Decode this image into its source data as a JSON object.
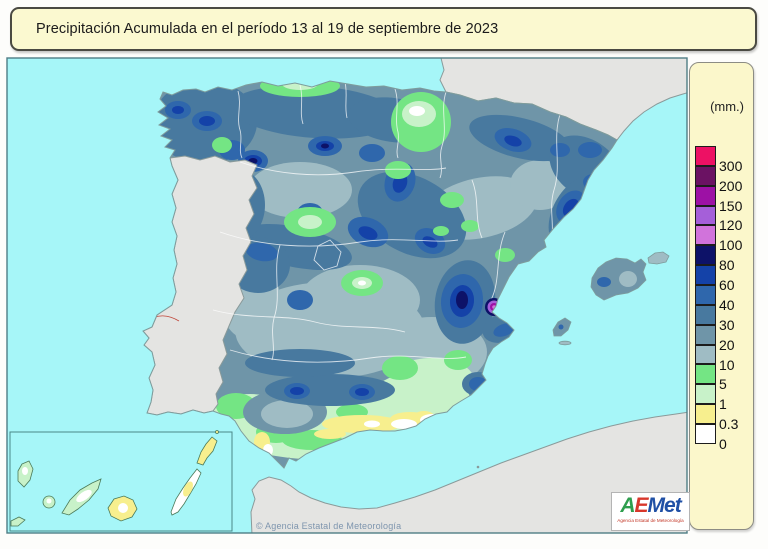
{
  "title": "Precipitación Acumulada en el período 13 al 19 de septiembre de 2023",
  "legend": {
    "unit_label": "(mm.)",
    "items": [
      {
        "label": "300",
        "color": "#ED1164"
      },
      {
        "label": "200",
        "color": "#6B1263"
      },
      {
        "label": "150",
        "color": "#9D11A5"
      },
      {
        "label": "120",
        "color": "#A55FD9"
      },
      {
        "label": "100",
        "color": "#D173DB"
      },
      {
        "label": "80",
        "color": "#0D1268"
      },
      {
        "label": "60",
        "color": "#1442A8"
      },
      {
        "label": "40",
        "color": "#2F67AC"
      },
      {
        "label": "30",
        "color": "#48799F"
      },
      {
        "label": "20",
        "color": "#6F95A8"
      },
      {
        "label": "10",
        "color": "#9FBCC4"
      },
      {
        "label": "5",
        "color": "#74E584"
      },
      {
        "label": "1",
        "color": "#C8F2C9"
      },
      {
        "label": "0.3",
        "color": "#F7EF8E"
      },
      {
        "label": "0",
        "color": "#FFFFFF"
      }
    ]
  },
  "map": {
    "copyright": "© Agencia Estatal de Meteorología"
  },
  "logo": {
    "letters": [
      {
        "ch": "A",
        "color": "#2F9E4E"
      },
      {
        "ch": "E",
        "color": "#D8372B"
      },
      {
        "ch": "M",
        "color": "#2050A5"
      },
      {
        "ch": "e",
        "color": "#2050A5"
      },
      {
        "ch": "t",
        "color": "#2050A5"
      }
    ],
    "subtitle": "Agencia Estatal de Meteorología"
  },
  "colors": {
    "sea": "#A6F6F8",
    "foreign_land": "#E4E4E2",
    "coast": "#7E9C9C",
    "map_border": "#4F7D85",
    "panel_bg": "#FBF7CB",
    "panel_border": "#8C8C84",
    "title_bg": "#FBF9D0",
    "title_border": "#4A4A42"
  }
}
